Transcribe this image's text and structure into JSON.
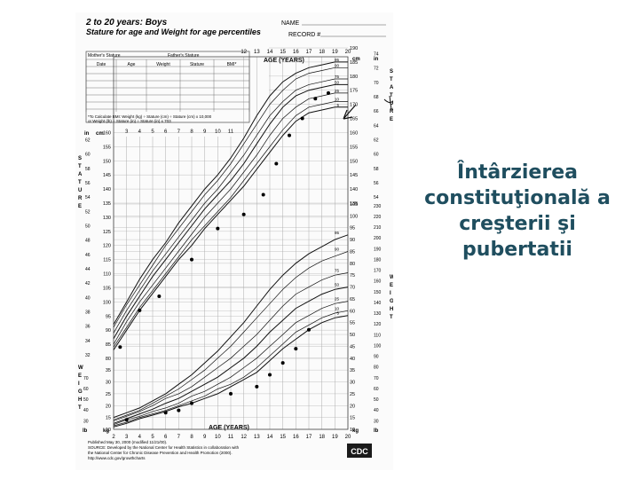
{
  "slide": {
    "title": "Întârzierea\nconstituţională a\ncreşterii şi pubertatii",
    "title_color": "#1f4e5f"
  },
  "sheet": {
    "heading_line1": "2 to 20 years: Boys",
    "heading_line2": "Stature for age and Weight for age percentiles",
    "name_label": "NAME",
    "record_label": "RECORD #",
    "side_stature": "STATURE",
    "side_weight": "WEIGHT",
    "unit_cm": "cm",
    "unit_in": "in",
    "unit_kg": "kg",
    "unit_lb": "lb",
    "age_label_top": "AGE (YEARS)",
    "age_label_bottom": "AGE (YEARS)",
    "logo": "CDC",
    "footer_line1": "Published May 30, 2000 (modified 11/21/00).",
    "footer_line2": "SOURCE: Developed by the National Center for Health Statistics in collaboration with",
    "footer_line3": "the National Center for Chronic Disease Prevention and Health Promotion (2000).",
    "footer_line4": "http://www.cdc.gov/growthcharts",
    "table_headers": [
      "Date",
      "Age",
      "Weight",
      "Stature",
      "BMI*"
    ],
    "table_caption": "Mother's Stature",
    "table_caption2": "Father's Stature",
    "bmi_note": "*To Calculate BMI: Weight (kg) ÷ Stature (cm) ÷ Stature (cm) x 10,000",
    "bmi_note2": "or Weight (lb) ÷ Stature (in) ÷ Stature (in) x 703"
  },
  "chart_data": {
    "type": "line",
    "title": "2 to 20 years: Boys — Stature for age and Weight for age percentiles",
    "xlabel": "AGE (YEARS)",
    "x_ticks": [
      2,
      3,
      4,
      5,
      6,
      7,
      8,
      9,
      10,
      11,
      12,
      13,
      14,
      15,
      16,
      17,
      18,
      19,
      20
    ],
    "stature_cm_ticks": [
      80,
      85,
      90,
      95,
      100,
      105,
      110,
      115,
      120,
      125,
      130,
      135,
      140,
      145,
      150,
      155,
      160,
      165,
      170,
      175,
      180,
      185,
      190
    ],
    "weight_kg_ticks": [
      10,
      15,
      20,
      25,
      30,
      35,
      40,
      45,
      50,
      55,
      60,
      65,
      70,
      75,
      80,
      85,
      90,
      95,
      100,
      105
    ],
    "stature_in_ticks": [
      30,
      32,
      34,
      36,
      38,
      40,
      42,
      44,
      46,
      48,
      50,
      52,
      54,
      56,
      58,
      60,
      62,
      64,
      66,
      68,
      70,
      72,
      74,
      76
    ],
    "weight_lb_ticks": [
      30,
      40,
      50,
      60,
      70,
      80,
      90,
      100,
      110,
      120,
      130,
      140,
      150,
      160,
      170,
      180,
      190,
      200,
      210,
      220,
      230
    ],
    "age": [
      2,
      3,
      4,
      5,
      6,
      7,
      8,
      9,
      10,
      11,
      12,
      13,
      14,
      15,
      16,
      17,
      18,
      19,
      20
    ],
    "stature_percentiles": [
      {
        "name": "95",
        "values": [
          92,
          100,
          108,
          115,
          121,
          128,
          134,
          140,
          145,
          151,
          158,
          166,
          173,
          178,
          181,
          183,
          184,
          185,
          185
        ]
      },
      {
        "name": "90",
        "values": [
          91,
          99,
          106,
          113,
          120,
          126,
          132,
          138,
          143,
          149,
          156,
          163,
          170,
          175,
          179,
          181,
          182,
          183,
          183
        ]
      },
      {
        "name": "75",
        "values": [
          89,
          97,
          104,
          111,
          117,
          123,
          129,
          135,
          140,
          146,
          152,
          159,
          166,
          171,
          175,
          177,
          178,
          179,
          179
        ]
      },
      {
        "name": "50",
        "values": [
          87,
          95,
          102,
          109,
          115,
          121,
          127,
          133,
          138,
          143,
          149,
          156,
          163,
          169,
          173,
          175,
          176,
          177,
          177
        ]
      },
      {
        "name": "25",
        "values": [
          85,
          93,
          100,
          106,
          112,
          118,
          124,
          130,
          135,
          140,
          146,
          152,
          159,
          165,
          169,
          172,
          173,
          174,
          174
        ]
      },
      {
        "name": "10",
        "values": [
          84,
          91,
          98,
          104,
          110,
          116,
          122,
          127,
          132,
          137,
          143,
          149,
          155,
          161,
          166,
          169,
          170,
          171,
          171
        ]
      },
      {
        "name": "5",
        "values": [
          83,
          90,
          97,
          103,
          109,
          115,
          120,
          126,
          131,
          136,
          141,
          147,
          153,
          159,
          164,
          167,
          168,
          169,
          169
        ]
      }
    ],
    "weight_percentiles": [
      {
        "name": "95",
        "values": [
          15,
          17,
          19,
          22,
          25,
          29,
          33,
          38,
          43,
          49,
          55,
          62,
          69,
          75,
          80,
          84,
          87,
          90,
          92
        ]
      },
      {
        "name": "90",
        "values": [
          14,
          16,
          18,
          21,
          24,
          27,
          31,
          35,
          40,
          45,
          51,
          57,
          63,
          69,
          74,
          78,
          81,
          83,
          85
        ]
      },
      {
        "name": "75",
        "values": [
          13.5,
          15.5,
          17.5,
          20,
          23,
          25,
          28,
          32,
          36,
          40,
          45,
          50,
          56,
          62,
          67,
          70,
          73,
          75,
          76
        ]
      },
      {
        "name": "50",
        "values": [
          12.5,
          14.5,
          16.5,
          18.5,
          21,
          23,
          26,
          29,
          32,
          36,
          40,
          45,
          51,
          56,
          61,
          64,
          67,
          69,
          70
        ]
      },
      {
        "name": "25",
        "values": [
          12,
          14,
          15.5,
          17.5,
          19,
          21,
          24,
          26,
          29,
          32,
          36,
          40,
          45,
          50,
          55,
          58,
          61,
          63,
          64
        ]
      },
      {
        "name": "10",
        "values": [
          11.5,
          13,
          15,
          16.5,
          18,
          20,
          22,
          24,
          27,
          29,
          32,
          36,
          41,
          46,
          51,
          54,
          57,
          59,
          60
        ]
      },
      {
        "name": "5",
        "values": [
          11,
          12.5,
          14.5,
          16,
          17.5,
          19.5,
          21,
          23,
          25,
          28,
          31,
          34,
          39,
          44,
          48,
          52,
          55,
          57,
          58
        ]
      }
    ],
    "patient_stature": [
      {
        "x": 2.5,
        "y": 84
      },
      {
        "x": 4,
        "y": 97
      },
      {
        "x": 5.5,
        "y": 102
      },
      {
        "x": 8,
        "y": 115
      },
      {
        "x": 10,
        "y": 126
      },
      {
        "x": 12,
        "y": 131
      },
      {
        "x": 13.5,
        "y": 138
      },
      {
        "x": 14.5,
        "y": 149
      },
      {
        "x": 15.5,
        "y": 159
      },
      {
        "x": 16.5,
        "y": 165
      },
      {
        "x": 17.5,
        "y": 172
      },
      {
        "x": 18.5,
        "y": 174
      }
    ],
    "patient_weight": [
      {
        "x": 3,
        "y": 14
      },
      {
        "x": 6,
        "y": 17
      },
      {
        "x": 7,
        "y": 18
      },
      {
        "x": 8,
        "y": 21
      },
      {
        "x": 11,
        "y": 25
      },
      {
        "x": 13,
        "y": 28
      },
      {
        "x": 14,
        "y": 33
      },
      {
        "x": 15,
        "y": 38
      },
      {
        "x": 16,
        "y": 44
      },
      {
        "x": 17,
        "y": 52
      }
    ],
    "stature_ylim": [
      80,
      190
    ],
    "weight_ylim": [
      10,
      105
    ],
    "grid": true
  }
}
